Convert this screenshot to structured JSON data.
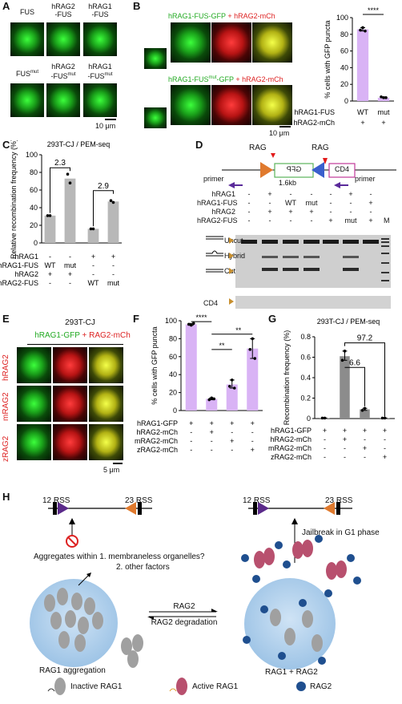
{
  "panels": {
    "A": {
      "letter": "A",
      "top_labels": [
        "FUS",
        "hRAG2\n-FUS",
        "hRAG1\n-FUS"
      ],
      "bottom_labels": [
        "FUS",
        "hRAG2\n-FUS",
        "hRAG1\n-FUS"
      ],
      "mut_superscript": "mut",
      "scalebar": "10 μm"
    },
    "B": {
      "letter": "B",
      "row1_title_green": "hRAG1-FUS-GFP",
      "row1_title_red": "+ hRAG2-mCh",
      "row2_title_green_pre": "hRAG1-FUS",
      "row2_title_green_sup": "mut",
      "row2_title_green_post": "-GFP",
      "row2_title_red": "+ hRAG2-mCh",
      "scalebar": "10 μm",
      "significance": "****",
      "row_labels": [
        "hRAG1-FUS",
        "hRAG2-mCh"
      ],
      "conditions": [
        [
          "WT",
          "+"
        ],
        [
          "mut",
          "+"
        ]
      ]
    },
    "C": {
      "letter": "C",
      "title": "293T-CJ / PEM-seq",
      "annotations": [
        "2.3",
        "2.9"
      ],
      "row_labels": [
        "hRAG1",
        "hRAG1-FUS",
        "hRAG2",
        "hRAG2-FUS"
      ],
      "columns": [
        [
          "-",
          "WT",
          "+",
          "-"
        ],
        [
          "-",
          "mut",
          "+",
          "-"
        ],
        [
          "+",
          "-",
          "-",
          "WT"
        ],
        [
          "+",
          "-",
          "-",
          "mut"
        ]
      ]
    },
    "D": {
      "letter": "D",
      "rag_left": "RAG",
      "rag_right": "RAG",
      "gfp_label": "GFP",
      "cd4_label": "CD4",
      "length": "1.6kb",
      "primer_left": "primer",
      "primer_right": "primer",
      "row_labels": [
        "hRAG1",
        "hRAG1-FUS",
        "hRAG2",
        "hRAG2-FUS"
      ],
      "lane_values": [
        [
          "-",
          "+",
          "-",
          "-",
          "-",
          "+",
          "-"
        ],
        [
          "-",
          "-",
          "WT",
          "mut",
          "-",
          "-",
          "+"
        ],
        [
          "-",
          "+",
          "+",
          "+",
          "-",
          "-",
          "-"
        ],
        [
          "-",
          "-",
          "-",
          "-",
          "+",
          "mut",
          "+"
        ]
      ],
      "marker": "M",
      "band_labels": [
        "Uncut",
        "Hybrid",
        "Cut",
        "CD4"
      ]
    },
    "E": {
      "letter": "E",
      "title": "293T-CJ",
      "subtitle_green": "hRAG1-GFP",
      "subtitle_red": "+ RAG2-mCh",
      "row_labels": [
        "hRAG2",
        "mRAG2",
        "zRAG2"
      ],
      "scalebar": "5 μm"
    },
    "F": {
      "letter": "F",
      "significance": [
        "****",
        "**",
        "**"
      ],
      "row_labels": [
        "hRAG1-GFP",
        "hRAG2-mCh",
        "mRAG2-mCh",
        "zRAG2-mCh"
      ],
      "columns": [
        [
          "+",
          "-",
          "-",
          "-"
        ],
        [
          "+",
          "+",
          "-",
          "-"
        ],
        [
          "+",
          "-",
          "+",
          "-"
        ],
        [
          "+",
          "-",
          "-",
          "+"
        ]
      ]
    },
    "G": {
      "letter": "G",
      "title": "293T-CJ / PEM-seq",
      "annotations": [
        "97.2",
        "6.6"
      ],
      "row_labels": [
        "hRAG1-GFP",
        "hRAG2-mCh",
        "mRAG2-mCh",
        "zRAG2-mCh"
      ],
      "columns": [
        [
          "+",
          "-",
          "-",
          "-"
        ],
        [
          "+",
          "+",
          "-",
          "-"
        ],
        [
          "+",
          "-",
          "+",
          "-"
        ],
        [
          "+",
          "-",
          "-",
          "+"
        ]
      ]
    },
    "H": {
      "letter": "H",
      "rss_left": [
        "12 RSS",
        "23 RSS"
      ],
      "rss_right": [
        "12 RSS",
        "23 RSS"
      ],
      "question_1": "Aggregates within 1. membraneless organelles?",
      "question_2": "2. other factors",
      "arrow_top": "RAG2",
      "arrow_bottom": "RAG2 degradation",
      "jailbreak": "Jailbreak in G1 phase",
      "label_left": "RAG1 aggregation",
      "label_right": "RAG1 + RAG2",
      "legend": [
        "Inactive RAG1",
        "Active RAG1",
        "RAG2"
      ]
    }
  },
  "chart_data": [
    {
      "panel": "B",
      "type": "bar",
      "ylabel": "% cells with GFP puncta",
      "ylim": [
        0,
        100
      ],
      "yticks": [
        0,
        20,
        40,
        60,
        80,
        100
      ],
      "categories": [
        "WT",
        "mut"
      ],
      "values": [
        86,
        4
      ],
      "points": [
        [
          85,
          88,
          84
        ],
        [
          5,
          4,
          4
        ]
      ],
      "colors": [
        "#d9b3f5"
      ]
    },
    {
      "panel": "C",
      "type": "bar",
      "ylabel": "Relative recombination frequency (%)",
      "ylim": [
        0,
        100
      ],
      "yticks": [
        0,
        20,
        40,
        60,
        80,
        100
      ],
      "categories": [
        "WT",
        "mut",
        "WT",
        "mut"
      ],
      "values": [
        31,
        73,
        16,
        47
      ],
      "points": [
        [
          31,
          31
        ],
        [
          78,
          68
        ],
        [
          16,
          16
        ],
        [
          48,
          46
        ]
      ],
      "colors": [
        "#b8b8b8"
      ]
    },
    {
      "panel": "F",
      "type": "bar",
      "ylabel": "% cells with GFP puncta",
      "ylim": [
        0,
        100
      ],
      "yticks": [
        0,
        20,
        40,
        60,
        80,
        100
      ],
      "categories": [
        "hRAG1-GFP",
        "+hRAG2",
        "+mRAG2",
        "+zRAG2"
      ],
      "values": [
        96,
        13,
        29,
        69
      ],
      "points": [
        [
          96,
          95,
          97
        ],
        [
          12,
          14,
          13
        ],
        [
          27,
          34,
          25
        ],
        [
          68,
          80,
          58
        ]
      ],
      "colors": [
        "#d9b3f5"
      ]
    },
    {
      "panel": "G",
      "type": "bar",
      "ylabel": "Recombination frequency (%)",
      "ylim": [
        0,
        0.8
      ],
      "yticks": [
        0,
        0.2,
        0.4,
        0.6,
        0.8
      ],
      "categories": [
        "hRAG1-GFP",
        "+hRAG2",
        "+mRAG2",
        "+zRAG2"
      ],
      "values": [
        0.005,
        0.61,
        0.09,
        0.005
      ],
      "points": [
        [
          0.005,
          0.005
        ],
        [
          0.57,
          0.66
        ],
        [
          0.08,
          0.1
        ],
        [
          0.005,
          0.005
        ]
      ],
      "colors": [
        "#8c8c8c"
      ]
    }
  ]
}
